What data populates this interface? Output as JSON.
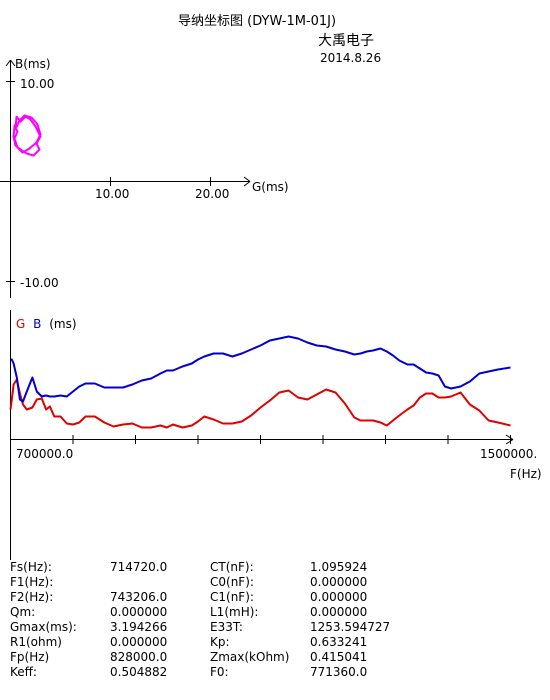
{
  "header": {
    "title": "导纳坐标图  (DYW-1M-01J)",
    "company": "大禹电子",
    "date": "2014.8.26"
  },
  "chart_data": [
    {
      "type": "scatter",
      "title": "",
      "xlabel": "G(ms)",
      "ylabel": "B(ms)",
      "xlim": [
        -1.0,
        24.0
      ],
      "ylim": [
        -12.0,
        12.0
      ],
      "x_ticks": [
        "10.00",
        "20.00"
      ],
      "y_ticks": [
        "10.00",
        "-10.00"
      ],
      "series": [
        {
          "color": "#ff00ff",
          "x": [
            0.6,
            1.0,
            1.5,
            2.0,
            2.5,
            3.0,
            2.6,
            2.9,
            2.3,
            1.6,
            1.0,
            0.5,
            0.3,
            0.4,
            0.7,
            0.4,
            0.7,
            1.2,
            1.9,
            2.6,
            3.0,
            2.7,
            2.1,
            1.4,
            0.9,
            0.5
          ],
          "y": [
            6.5,
            6.0,
            6.5,
            6.2,
            5.5,
            4.5,
            3.8,
            3.2,
            2.6,
            2.8,
            3.2,
            3.6,
            4.5,
            5.5,
            5.0,
            4.3,
            3.4,
            2.9,
            3.3,
            3.9,
            4.7,
            5.7,
            6.4,
            6.6,
            6.1,
            5.2
          ]
        }
      ]
    },
    {
      "type": "line",
      "title": "",
      "ylabel_parts": [
        {
          "text": "G",
          "color": "#e00000"
        },
        {
          "text": "B",
          "color": "#0000d0"
        },
        {
          "text": "(ms)",
          "color": "#000000"
        }
      ],
      "xlabel": "F(Hz)",
      "xlim": [
        700000.0,
        1500000.0
      ],
      "x_tick_labels": [
        "700000.0",
        "1500000."
      ],
      "x_minor_ticks": [
        800000,
        900000,
        1000000,
        1100000,
        1200000,
        1300000,
        1400000
      ],
      "ylim": [
        0,
        10
      ],
      "x": [
        700000,
        702000,
        705000,
        710000,
        715000,
        720000,
        726000,
        735000,
        742000,
        750000,
        757000,
        763000,
        770000,
        780000,
        790000,
        800000,
        810000,
        820000,
        835000,
        850000,
        865000,
        880000,
        895000,
        910000,
        925000,
        940000,
        950000,
        960000,
        975000,
        990000,
        1000000,
        1010000,
        1025000,
        1040000,
        1055000,
        1070000,
        1085000,
        1100000,
        1115000,
        1130000,
        1145000,
        1160000,
        1175000,
        1190000,
        1205000,
        1220000,
        1235000,
        1250000,
        1260000,
        1270000,
        1280000,
        1292000,
        1302000,
        1312000,
        1322000,
        1335000,
        1345000,
        1355000,
        1365000,
        1375000,
        1385000,
        1395000,
        1405000,
        1420000,
        1435000,
        1450000,
        1465000,
        1480000,
        1500000
      ],
      "series": [
        {
          "name": "G",
          "color": "#e00000",
          "values": [
            3.0,
            4.0,
            5.5,
            6.0,
            4.6,
            3.5,
            3.0,
            3.2,
            4.0,
            4.1,
            3.0,
            3.3,
            2.3,
            2.3,
            1.6,
            1.5,
            1.7,
            2.3,
            2.3,
            1.7,
            1.3,
            1.5,
            1.6,
            1.2,
            1.2,
            1.4,
            1.2,
            1.5,
            1.2,
            1.4,
            1.8,
            2.3,
            2.0,
            1.6,
            1.6,
            1.8,
            2.4,
            3.2,
            3.9,
            4.7,
            4.9,
            4.2,
            4.0,
            4.5,
            5.0,
            4.7,
            3.6,
            2.2,
            1.9,
            1.9,
            1.9,
            1.7,
            1.4,
            1.9,
            2.4,
            3.0,
            3.4,
            4.2,
            4.6,
            4.6,
            4.2,
            4.2,
            4.3,
            4.7,
            3.5,
            2.9,
            1.9,
            1.7,
            1.4
          ]
        },
        {
          "name": "B",
          "color": "#0000d0",
          "values": [
            8.0,
            8.0,
            7.6,
            6.2,
            4.0,
            3.8,
            4.8,
            6.2,
            4.8,
            4.3,
            4.4,
            4.3,
            4.3,
            4.4,
            4.3,
            4.8,
            5.3,
            5.6,
            5.6,
            5.2,
            5.2,
            5.2,
            5.5,
            5.9,
            6.1,
            6.6,
            6.9,
            6.9,
            7.3,
            7.6,
            8.0,
            8.3,
            8.6,
            8.6,
            8.3,
            8.6,
            9.0,
            9.4,
            9.9,
            10.1,
            10.3,
            10.1,
            9.7,
            9.4,
            9.3,
            9.0,
            8.8,
            8.5,
            8.6,
            8.8,
            8.9,
            9.1,
            8.8,
            8.4,
            7.9,
            7.5,
            7.5,
            7.1,
            6.7,
            6.6,
            6.4,
            5.3,
            5.1,
            5.3,
            5.8,
            6.6,
            6.8,
            7.0,
            7.2
          ]
        }
      ]
    }
  ],
  "params": [
    {
      "l1": "Fs(Hz):",
      "v1": "714720.0",
      "l2": "CT(nF):",
      "v2": "1.095924"
    },
    {
      "l1": "F1(Hz):",
      "v1": "",
      "l2": "C0(nF):",
      "v2": "0.000000"
    },
    {
      "l1": "F2(Hz):",
      "v1": "743206.0",
      "l2": "C1(nF):",
      "v2": "0.000000"
    },
    {
      "l1": "Qm:",
      "v1": "0.000000",
      "l2": "L1(mH):",
      "v2": "0.000000"
    },
    {
      "l1": "Gmax(ms):",
      "v1": "3.194266",
      "l2": "E33T:",
      "v2": "1253.594727"
    },
    {
      "l1": "R1(ohm)",
      "v1": "0.000000",
      "l2": "Kp:",
      "v2": "0.633241"
    },
    {
      "l1": "Fp(Hz)",
      "v1": "828000.0",
      "l2": "Zmax(kOhm)",
      "v2": "0.415041"
    },
    {
      "l1": "Keff:",
      "v1": "0.504882",
      "l2": "F0:",
      "v2": "771360.0"
    }
  ]
}
